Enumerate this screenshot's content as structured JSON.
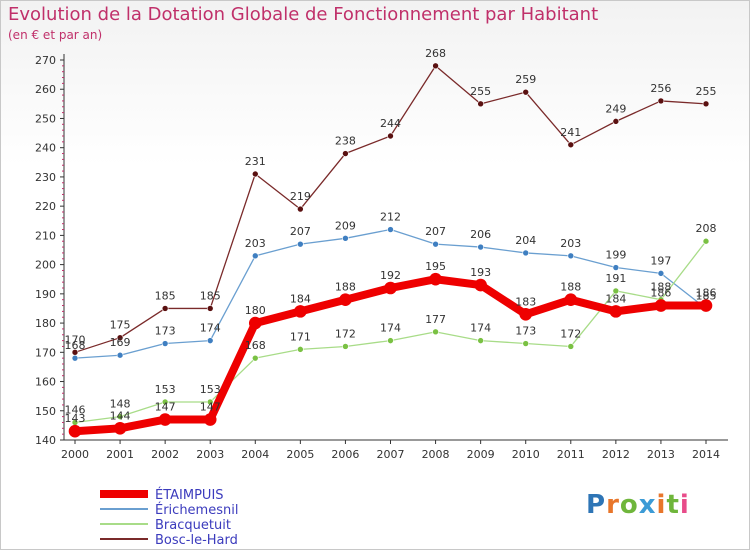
{
  "header": {
    "title": "Evolution de la Dotation Globale de Fonctionnement par Habitant",
    "subtitle": "(en € et par an)"
  },
  "brand": {
    "text": "Proxiti",
    "colors": [
      "#2e75b6",
      "#e8762b",
      "#6fb63b",
      "#3c9bd6",
      "#e8762b",
      "#6fb63b",
      "#e84c8a"
    ]
  },
  "chart_data": {
    "type": "line",
    "title": "Evolution de la Dotation Globale de Fonctionnement par Habitant",
    "subtitle": "(en € et par an)",
    "xlabel": "",
    "ylabel": "",
    "ylim": [
      140,
      270
    ],
    "yticks": [
      140,
      150,
      160,
      170,
      180,
      190,
      200,
      210,
      220,
      230,
      240,
      250,
      260,
      270
    ],
    "x": [
      2000,
      2001,
      2002,
      2003,
      2004,
      2005,
      2006,
      2007,
      2008,
      2009,
      2010,
      2011,
      2012,
      2013,
      2014
    ],
    "grid": false,
    "legend_position": "bottom-left",
    "series": [
      {
        "name": "Bosc-le-Hard",
        "color": "#7a2a2a",
        "marker": "#5a1010",
        "width": 1.3,
        "values": [
          170,
          175,
          185,
          185,
          231,
          219,
          238,
          244,
          268,
          255,
          259,
          241,
          249,
          256,
          255
        ]
      },
      {
        "name": "Érichemesnil",
        "color": "#6a9fd0",
        "marker": "#3f7fc1",
        "width": 1.3,
        "values": [
          168,
          169,
          173,
          174,
          203,
          207,
          209,
          212,
          207,
          206,
          204,
          203,
          199,
          197,
          185
        ]
      },
      {
        "name": "Bracquetuit",
        "color": "#a8dc88",
        "marker": "#7ac143",
        "width": 1.3,
        "values": [
          146,
          148,
          153,
          153,
          168,
          171,
          172,
          174,
          177,
          174,
          173,
          172,
          191,
          188,
          208
        ]
      },
      {
        "name": "ÉTAIMPUIS",
        "color": "#ee0000",
        "marker": "#ee0000",
        "width": 8,
        "values": [
          143,
          144,
          147,
          147,
          180,
          184,
          188,
          192,
          195,
          193,
          183,
          188,
          184,
          186,
          186
        ]
      }
    ]
  }
}
